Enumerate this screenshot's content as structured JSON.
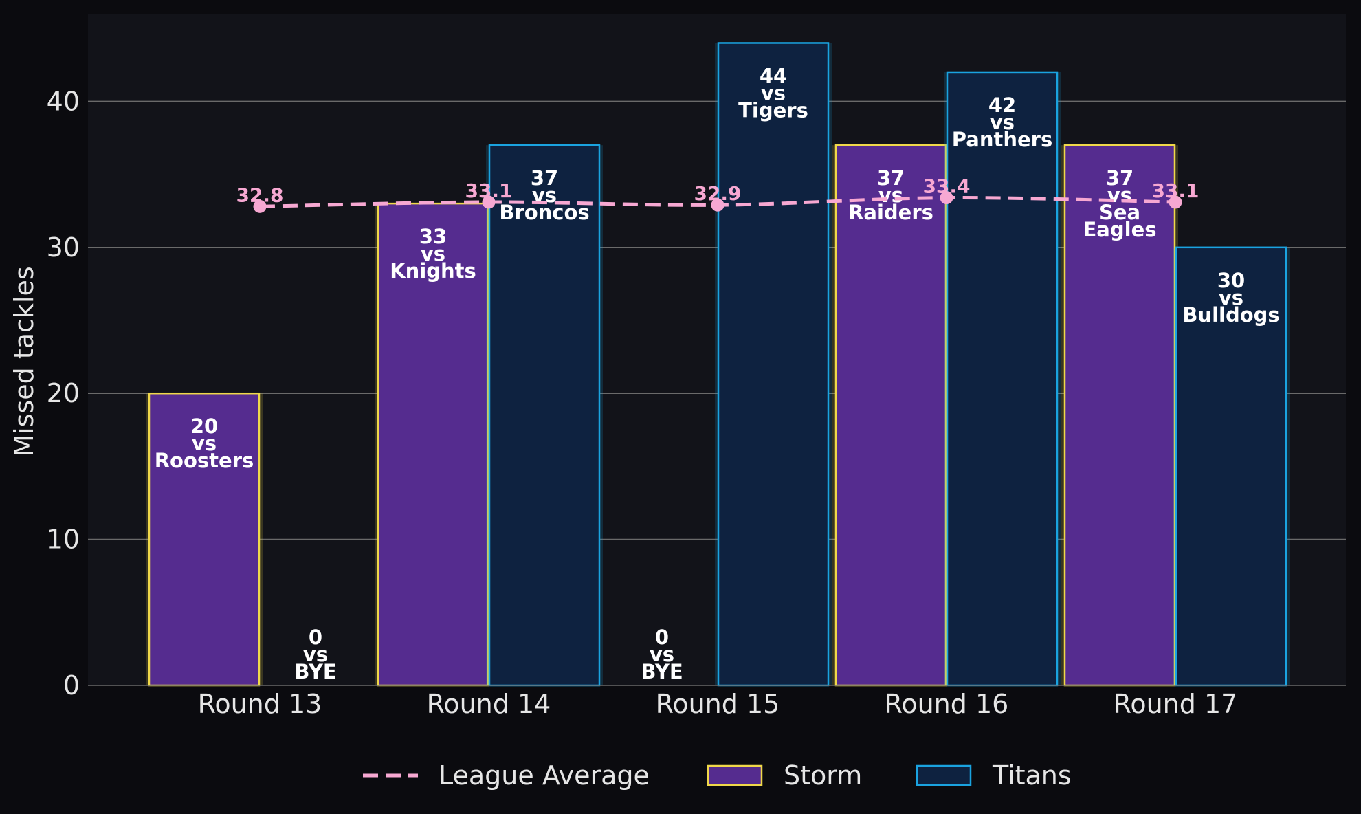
{
  "chart_data": {
    "type": "bar",
    "title": "",
    "xlabel": "",
    "ylabel": "Missed tackles",
    "ylim": [
      0,
      46
    ],
    "yticks": [
      0,
      10,
      20,
      30,
      40
    ],
    "grid": true,
    "legend_position": "bottom-center",
    "categories": [
      "Round 13",
      "Round 14",
      "Round 15",
      "Round 16",
      "Round 17"
    ],
    "series": [
      {
        "name": "Storm",
        "type": "bar",
        "fill": "#552c8f",
        "edge": "#f0d84a",
        "values": [
          20,
          33,
          0,
          37,
          37
        ],
        "opponents": [
          "Roosters",
          "Knights",
          "BYE",
          "Raiders",
          "Sea Eagles"
        ],
        "vs": "vs"
      },
      {
        "name": "Titans",
        "type": "bar",
        "fill": "#0e2240",
        "edge": "#1aa3e0",
        "values": [
          0,
          37,
          44,
          42,
          30
        ],
        "opponents": [
          "BYE",
          "Broncos",
          "Tigers",
          "Panthers",
          "Bulldogs"
        ],
        "vs": "vs"
      },
      {
        "name": "League Average",
        "type": "line",
        "style": "dashed",
        "color": "#f7a8d2",
        "values": [
          32.8,
          33.1,
          32.9,
          33.4,
          33.1
        ]
      }
    ],
    "colors": {
      "figure_bg": "#0b0b0f",
      "plot_bg": "#121319",
      "grid": "#6a6a6a",
      "text": "#e6e6e6"
    }
  }
}
